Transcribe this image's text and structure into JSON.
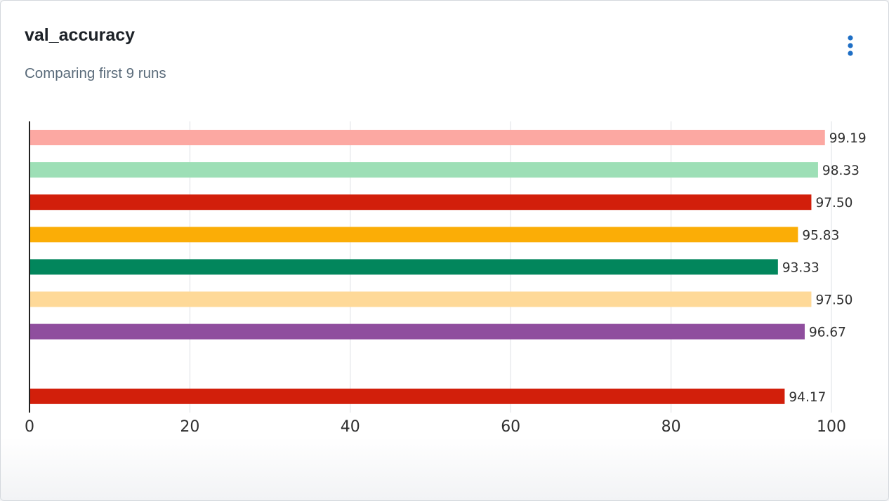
{
  "panel": {
    "title": "val_accuracy",
    "subtitle": "Comparing first 9 runs",
    "menu_icon": "kebab-menu-icon",
    "menu_icon_color": "#1f6fc5"
  },
  "chart_data": {
    "type": "bar",
    "orientation": "horizontal",
    "title": "val_accuracy",
    "subtitle": "Comparing first 9 runs",
    "xlabel": "",
    "ylabel": "",
    "xlim": [
      0,
      100
    ],
    "x_ticks": [
      "0",
      "20",
      "40",
      "60",
      "80",
      "100"
    ],
    "grid": "vertical",
    "legend": "none",
    "bars": [
      {
        "value": 99.19,
        "label": "99.19",
        "color": "#fca8a2"
      },
      {
        "value": 98.33,
        "label": "98.33",
        "color": "#9ddfb6"
      },
      {
        "value": 97.5,
        "label": "97.50",
        "color": "#d21f0b"
      },
      {
        "value": 95.83,
        "label": "95.83",
        "color": "#fbad06"
      },
      {
        "value": 93.33,
        "label": "93.33",
        "color": "#02865c"
      },
      {
        "value": 97.5,
        "label": "97.50",
        "color": "#fed998"
      },
      {
        "value": 96.67,
        "label": "96.67",
        "color": "#8f4e9e"
      },
      {
        "value": null,
        "label": "",
        "color": ""
      },
      {
        "value": 94.17,
        "label": "94.17",
        "color": "#d21f0b"
      }
    ]
  }
}
